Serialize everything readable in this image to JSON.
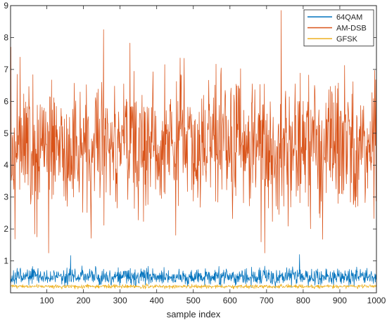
{
  "chart_data": {
    "type": "line",
    "title": "",
    "xlabel": "sample index",
    "ylabel": "",
    "xlim": [
      1,
      1000
    ],
    "ylim": [
      0,
      9
    ],
    "xticks": [
      "100",
      "200",
      "300",
      "400",
      "500",
      "600",
      "700",
      "800",
      "900",
      "1000"
    ],
    "yticks": [
      "1",
      "2",
      "3",
      "4",
      "5",
      "6",
      "7",
      "8",
      "9"
    ],
    "grid": false,
    "legend_position": "top-right",
    "num_samples": 1000,
    "series": [
      {
        "name": "64QAM",
        "color": "#0072BD",
        "mean": 0.5,
        "min": 0.15,
        "max": 1.2,
        "range_typical": [
          0.2,
          0.95
        ],
        "notable_points": [
          [
            165,
            1.17
          ],
          [
            790,
            1.2
          ]
        ]
      },
      {
        "name": "AM-DSB",
        "color": "#D95319",
        "mean": 4.6,
        "min": 1.25,
        "max": 8.85,
        "range_typical": [
          1.6,
          7.6
        ],
        "notable_points": [
          [
            2,
            7.7
          ],
          [
            105,
            1.25
          ],
          [
            255,
            8.25
          ],
          [
            740,
            8.85
          ],
          [
            695,
            1.25
          ]
        ]
      },
      {
        "name": "GFSK",
        "color": "#EDB120",
        "mean": 0.2,
        "min": 0.08,
        "max": 0.32,
        "range_typical": [
          0.12,
          0.3
        ],
        "notable_points": []
      }
    ]
  }
}
